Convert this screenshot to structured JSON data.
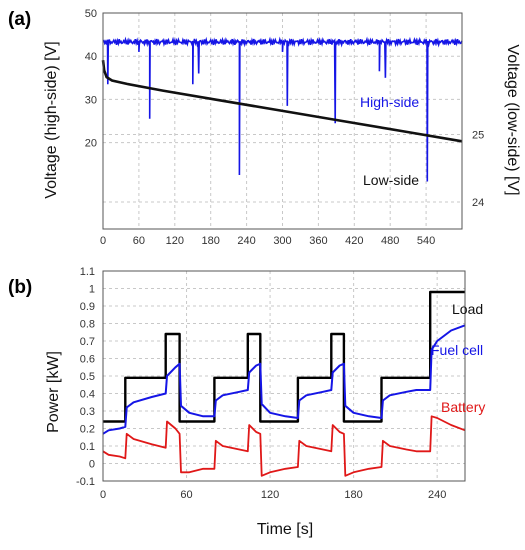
{
  "panels": {
    "a": {
      "label": "(a)"
    },
    "b": {
      "label": "(b)"
    }
  },
  "colors": {
    "high_side": "#1515e6",
    "low_side": "#111111",
    "load": "#000000",
    "fuel_cell": "#1515e6",
    "battery": "#e01818"
  },
  "chart_data": [
    {
      "type": "line",
      "panel": "a",
      "xlabel": "",
      "ylabel": "Voltage (high-side) [V]",
      "ylabel_right": "Voltage (low-side) [V]",
      "xlim": [
        0,
        600
      ],
      "xticks": [
        0,
        60,
        120,
        180,
        240,
        300,
        360,
        420,
        480,
        540
      ],
      "ylim": [
        0,
        50
      ],
      "yticks_left": [
        20,
        30,
        40,
        50
      ],
      "ylim_right": [
        23.6,
        26.8
      ],
      "yticks_right": [
        24,
        25
      ],
      "grid": true,
      "series": [
        {
          "name": "High-side",
          "axis": "left",
          "baseline": 43.3,
          "dips": [
            {
              "x": 8,
              "y": 33.5
            },
            {
              "x": 60,
              "y": 41
            },
            {
              "x": 78,
              "y": 25.5
            },
            {
              "x": 150,
              "y": 33.5
            },
            {
              "x": 160,
              "y": 36
            },
            {
              "x": 228,
              "y": 12.5
            },
            {
              "x": 300,
              "y": 41
            },
            {
              "x": 308,
              "y": 28.5
            },
            {
              "x": 388,
              "y": 24.5
            },
            {
              "x": 462,
              "y": 36.5
            },
            {
              "x": 472,
              "y": 35
            },
            {
              "x": 542,
              "y": 11
            }
          ]
        },
        {
          "name": "Low-side",
          "axis": "right",
          "x": [
            0,
            2,
            6,
            15,
            40,
            100,
            200,
            300,
            400,
            500,
            600
          ],
          "y": [
            26.1,
            25.95,
            25.85,
            25.8,
            25.75,
            25.65,
            25.5,
            25.35,
            25.2,
            25.05,
            24.9
          ]
        }
      ]
    },
    {
      "type": "line",
      "panel": "b",
      "xlabel": "Time [s]",
      "ylabel": "Power [kW]",
      "xlim": [
        0,
        260
      ],
      "xticks": [
        0,
        60,
        120,
        180,
        240
      ],
      "ylim": [
        -0.1,
        1.1
      ],
      "yticks": [
        "-0.1",
        "0",
        "0.1",
        "0.2",
        "0.3",
        "0.4",
        "0.5",
        "0.6",
        "0.7",
        "0.8",
        "0.9",
        "1",
        "1.1"
      ],
      "grid": true,
      "series": [
        {
          "name": "Load",
          "x": [
            0,
            16,
            16,
            45,
            45,
            55,
            55,
            80,
            80,
            104,
            104,
            113,
            113,
            140,
            140,
            164,
            164,
            173,
            173,
            200,
            200,
            225,
            225,
            235,
            235,
            260
          ],
          "y": [
            0.24,
            0.24,
            0.49,
            0.49,
            0.74,
            0.74,
            0.24,
            0.24,
            0.49,
            0.49,
            0.74,
            0.74,
            0.24,
            0.24,
            0.49,
            0.49,
            0.74,
            0.74,
            0.24,
            0.24,
            0.49,
            0.49,
            0.49,
            0.49,
            0.98,
            0.98
          ]
        },
        {
          "name": "Fuel cell",
          "x": [
            0,
            4,
            12,
            16,
            17,
            22,
            35,
            45,
            46,
            52,
            55,
            56,
            62,
            72,
            80,
            81,
            86,
            98,
            104,
            105,
            110,
            113,
            114,
            120,
            131,
            140,
            141,
            146,
            158,
            164,
            165,
            170,
            173,
            174,
            180,
            191,
            200,
            201,
            206,
            218,
            225,
            235,
            236,
            240,
            250,
            260
          ],
          "y": [
            0.17,
            0.19,
            0.2,
            0.21,
            0.32,
            0.35,
            0.38,
            0.4,
            0.5,
            0.55,
            0.57,
            0.33,
            0.29,
            0.27,
            0.27,
            0.36,
            0.39,
            0.41,
            0.42,
            0.52,
            0.56,
            0.57,
            0.34,
            0.29,
            0.27,
            0.26,
            0.36,
            0.39,
            0.41,
            0.42,
            0.52,
            0.56,
            0.57,
            0.33,
            0.29,
            0.27,
            0.26,
            0.36,
            0.39,
            0.41,
            0.42,
            0.42,
            0.65,
            0.7,
            0.76,
            0.79
          ]
        },
        {
          "name": "Battery",
          "x": [
            0,
            4,
            12,
            16,
            17,
            22,
            35,
            45,
            46,
            52,
            55,
            56,
            62,
            72,
            80,
            81,
            86,
            98,
            104,
            105,
            110,
            113,
            114,
            120,
            131,
            140,
            141,
            146,
            158,
            164,
            165,
            170,
            173,
            174,
            180,
            191,
            200,
            201,
            206,
            218,
            225,
            235,
            236,
            240,
            250,
            260
          ],
          "y": [
            0.07,
            0.05,
            0.04,
            0.03,
            0.17,
            0.14,
            0.11,
            0.09,
            0.24,
            0.2,
            0.17,
            -0.05,
            -0.05,
            -0.03,
            -0.03,
            0.13,
            0.1,
            0.08,
            0.07,
            0.22,
            0.18,
            0.17,
            -0.07,
            -0.05,
            -0.03,
            -0.02,
            0.13,
            0.1,
            0.08,
            0.07,
            0.22,
            0.18,
            0.17,
            -0.07,
            -0.05,
            -0.03,
            -0.02,
            0.13,
            0.1,
            0.08,
            0.07,
            0.07,
            0.27,
            0.26,
            0.22,
            0.19
          ]
        }
      ]
    }
  ]
}
